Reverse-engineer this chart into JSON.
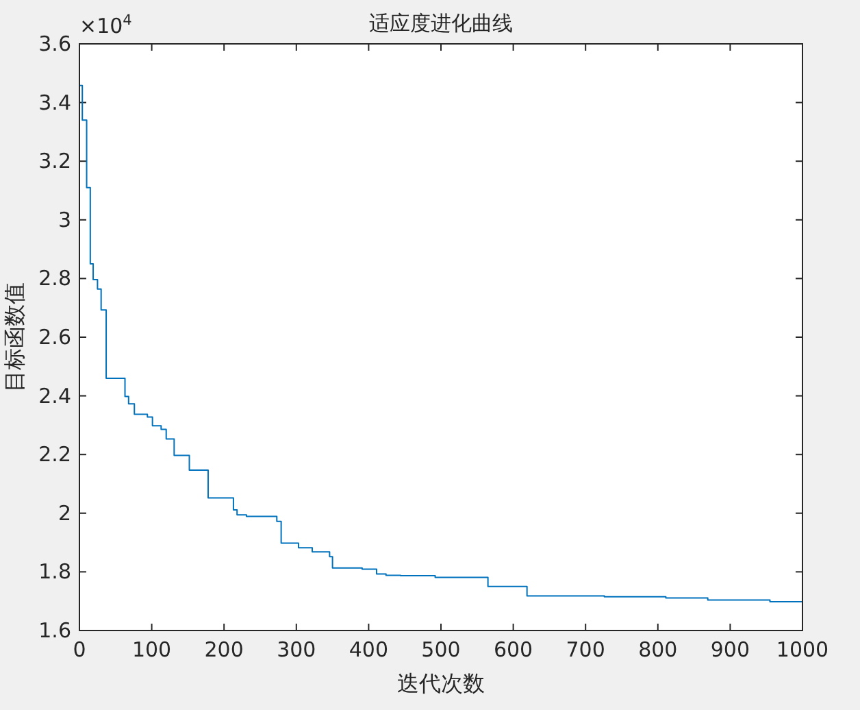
{
  "chart_data": {
    "type": "step",
    "title": "适应度进化曲线",
    "xlabel": "迭代次数",
    "ylabel": "目标函数值",
    "annotations": [
      "×10$^{4}$"
    ],
    "x": [
      0,
      4,
      10,
      15,
      19,
      25,
      30,
      37,
      63,
      68,
      76,
      94,
      101,
      113,
      120,
      131,
      152,
      178,
      213,
      218,
      231,
      273,
      279,
      303,
      322,
      346,
      350,
      391,
      411,
      424,
      444,
      492,
      565,
      619,
      726,
      811,
      869,
      955,
      1000
    ],
    "series": [
      {
        "color": "#0072bd",
        "values": [
          3.458,
          3.34,
          3.11,
          2.85,
          2.796,
          2.764,
          2.693,
          2.46,
          2.398,
          2.373,
          2.337,
          2.328,
          2.298,
          2.286,
          2.253,
          2.197,
          2.147,
          2.052,
          2.011,
          1.994,
          1.989,
          1.972,
          1.898,
          1.882,
          1.868,
          1.852,
          1.813,
          1.809,
          1.793,
          1.788,
          1.787,
          1.781,
          1.75,
          1.718,
          1.715,
          1.711,
          1.704,
          1.698,
          1.698
        ]
      }
    ],
    "xlim": [
      0,
      1000
    ],
    "xticks": [
      0,
      100,
      200,
      300,
      400,
      500,
      600,
      700,
      800,
      900,
      1000
    ],
    "ylim": [
      1.6,
      3.6
    ],
    "yticks": [
      1.6,
      1.8,
      2,
      2.2,
      2.4,
      2.6,
      2.8,
      3,
      3.2,
      3.4,
      3.6
    ],
    "grid": false,
    "line_style": "solid",
    "marker": "none"
  }
}
